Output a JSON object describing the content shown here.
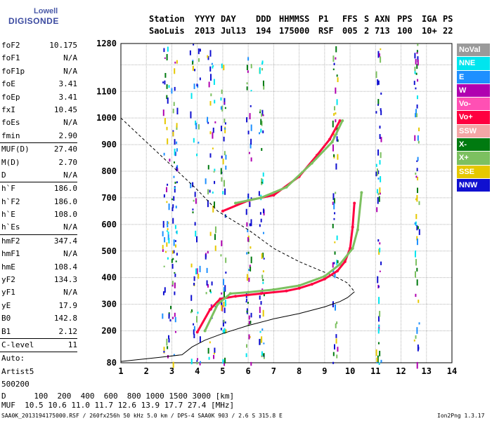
{
  "logo": {
    "top": "Lowell",
    "bottom": "DIGISONDE"
  },
  "header": {
    "labels": [
      "Station",
      "YYYY",
      "DAY",
      "DDD",
      "HHMMSS",
      "P1",
      "FFS",
      "S",
      "AXN",
      "PPS",
      "IGA",
      "PS"
    ],
    "values": [
      "SaoLuis",
      "2013",
      "Jul13",
      "194",
      "175000",
      "RSF",
      "005",
      "2",
      "713",
      "100",
      "10+",
      "22"
    ]
  },
  "params": [
    {
      "name": "foF2",
      "value": "10.175"
    },
    {
      "name": "foF1",
      "value": "N/A"
    },
    {
      "name": "foF1p",
      "value": "N/A"
    },
    {
      "name": "foE",
      "value": "3.41"
    },
    {
      "name": "foEp",
      "value": "3.41"
    },
    {
      "name": "fxI",
      "value": "10.45"
    },
    {
      "name": "foEs",
      "value": "N/A"
    },
    {
      "name": "fmin",
      "value": "2.90"
    },
    {
      "name": "MUF(D)",
      "value": "27.40"
    },
    {
      "name": "M(D)",
      "value": "2.70"
    },
    {
      "name": "D",
      "value": "N/A"
    },
    {
      "name": "h`F",
      "value": "186.0"
    },
    {
      "name": "h`F2",
      "value": "186.0"
    },
    {
      "name": "h`E",
      "value": "108.0"
    },
    {
      "name": "h`Es",
      "value": "N/A"
    },
    {
      "name": "hmF2",
      "value": "347.4"
    },
    {
      "name": "hmF1",
      "value": "N/A"
    },
    {
      "name": "hmE",
      "value": "108.4"
    },
    {
      "name": "yF2",
      "value": "134.3"
    },
    {
      "name": "yF1",
      "value": "N/A"
    },
    {
      "name": "yE",
      "value": "17.9"
    },
    {
      "name": "B0",
      "value": "142.8"
    },
    {
      "name": "B1",
      "value": "2.12"
    },
    {
      "name": "C-level",
      "value": "11"
    },
    {
      "name": "Auto:",
      "value": ""
    },
    {
      "name": "Artist5",
      "value": ""
    },
    {
      "name": "500200",
      "value": ""
    }
  ],
  "legend": [
    {
      "label": "NoVal",
      "color": "#9a9a9a"
    },
    {
      "label": "NNE",
      "color": "#00e5ee"
    },
    {
      "label": "E",
      "color": "#1e90ff"
    },
    {
      "label": "W",
      "color": "#b000b0"
    },
    {
      "label": "Vo-",
      "color": "#ff50b4"
    },
    {
      "label": "Vo+",
      "color": "#ff0040"
    },
    {
      "label": "SSW",
      "color": "#f4a6a6"
    },
    {
      "label": "X-",
      "color": "#007a10"
    },
    {
      "label": "X+",
      "color": "#7cc060"
    },
    {
      "label": "SSE",
      "color": "#e6c800"
    },
    {
      "label": "NNW",
      "color": "#1010d0"
    }
  ],
  "footer": {
    "row1": "D      100  200  400  600  800 1000 1500 3000 [km]",
    "row2": "MUF  10.5 10.6 11.0 11.7 12.6 13.9 17.7 27.4 [MHz]",
    "file": "SAA0K_2013194175000.RSF / 260fx256h 50 kHz 5.0 km / DPS-4 SAA0K 903 / 2.6 S 315.8 E",
    "version": "Ion2Png 1.3.17"
  },
  "chart_data": {
    "type": "scatter",
    "xlim": [
      1,
      14
    ],
    "ylim": [
      80,
      1280
    ],
    "x_ticks": [
      1,
      2,
      3,
      4,
      5,
      6,
      7,
      8,
      9,
      10,
      11,
      12,
      13,
      14
    ],
    "y_ticks": [
      80,
      200,
      300,
      400,
      500,
      600,
      700,
      800,
      900,
      1000,
      1100,
      1200,
      1280
    ],
    "y_tick_labels": [
      "80",
      "200",
      "300",
      "400",
      "500",
      "600",
      "700",
      "800",
      "900",
      "1000",
      "1100",
      "",
      "1280"
    ],
    "grid": true,
    "series": [
      {
        "name": "Vo+",
        "color": "#ff0040",
        "points": [
          [
            4.0,
            195
          ],
          [
            4.5,
            280
          ],
          [
            4.9,
            320
          ],
          [
            5.5,
            330
          ],
          [
            6.5,
            340
          ],
          [
            7.5,
            350
          ],
          [
            8.0,
            360
          ],
          [
            8.5,
            375
          ],
          [
            9.0,
            395
          ],
          [
            9.5,
            425
          ],
          [
            9.8,
            460
          ],
          [
            10.0,
            510
          ],
          [
            10.1,
            590
          ],
          [
            10.17,
            680
          ]
        ]
      },
      {
        "name": "X+",
        "color": "#7cc060",
        "points": [
          [
            4.3,
            200
          ],
          [
            4.8,
            300
          ],
          [
            5.3,
            340
          ],
          [
            6.0,
            345
          ],
          [
            7.0,
            355
          ],
          [
            8.0,
            370
          ],
          [
            9.0,
            405
          ],
          [
            9.6,
            450
          ],
          [
            10.1,
            510
          ],
          [
            10.3,
            580
          ],
          [
            10.45,
            720
          ]
        ]
      },
      {
        "name": "Vo+ oblique",
        "color": "#ff0040",
        "points": [
          [
            5.0,
            650
          ],
          [
            6.0,
            690
          ],
          [
            7.0,
            710
          ],
          [
            8.0,
            780
          ],
          [
            8.7,
            860
          ],
          [
            9.2,
            920
          ],
          [
            9.6,
            990
          ]
        ]
      },
      {
        "name": "X+ oblique",
        "color": "#7cc060",
        "points": [
          [
            5.5,
            680
          ],
          [
            6.5,
            700
          ],
          [
            7.5,
            740
          ],
          [
            8.5,
            830
          ],
          [
            9.3,
            910
          ],
          [
            9.7,
            990
          ]
        ]
      }
    ],
    "profile_solid": [
      [
        1.0,
        85
      ],
      [
        2.5,
        100
      ],
      [
        3.4,
        110
      ],
      [
        3.8,
        140
      ],
      [
        4.3,
        165
      ],
      [
        5.0,
        190
      ],
      [
        6.0,
        220
      ],
      [
        7.0,
        245
      ],
      [
        8.0,
        265
      ],
      [
        9.0,
        290
      ],
      [
        9.6,
        310
      ],
      [
        9.9,
        325
      ],
      [
        10.175,
        347
      ]
    ],
    "profile_dashed": [
      [
        1.0,
        1000
      ],
      [
        2.0,
        910
      ],
      [
        3.0,
        820
      ],
      [
        4.0,
        730
      ],
      [
        4.8,
        650
      ],
      [
        6.0,
        580
      ],
      [
        7.0,
        510
      ],
      [
        8.0,
        460
      ],
      [
        9.0,
        420
      ],
      [
        9.5,
        400
      ],
      [
        9.9,
        380
      ],
      [
        10.175,
        347
      ]
    ]
  }
}
